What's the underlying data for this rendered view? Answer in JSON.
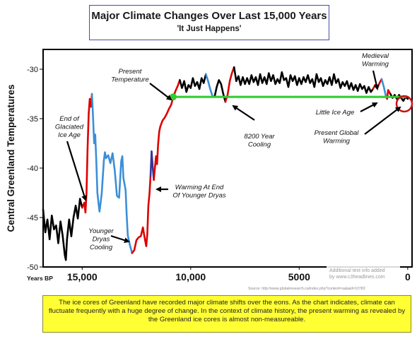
{
  "header": {
    "title": "Major Climate Changes Over Last 15,000 Years",
    "subtitle": "'It Just Happens'"
  },
  "chart_data": {
    "type": "line",
    "ylabel": "Central Greenland Temperatures",
    "xlabel": "Years BP",
    "ylim": [
      -50,
      -28
    ],
    "xlim": [
      16800,
      -200
    ],
    "x_ticks": [
      15000,
      10000,
      5000,
      0
    ],
    "x_tick_labels": [
      "15,000",
      "10,000",
      "5000",
      "0"
    ],
    "y_ticks": [
      -30,
      -35,
      -40,
      -45,
      -50
    ],
    "y_tick_labels": [
      "-30",
      "-35",
      "-40",
      "-45",
      "-50"
    ],
    "grid": false,
    "colors": {
      "cold": "#000000",
      "warming": "#dd0000",
      "cooling": "#3b8fd8",
      "present": "#33cc33",
      "deep": "#333399"
    },
    "present_temperature": -32.8,
    "series": [
      {
        "color_key": "cold",
        "points": [
          [
            16800,
            -44.2
          ],
          [
            16700,
            -46.5
          ],
          [
            16600,
            -45.2
          ],
          [
            16500,
            -47.2
          ],
          [
            16400,
            -44.8
          ],
          [
            16300,
            -46.2
          ],
          [
            16200,
            -45.8
          ],
          [
            16100,
            -47.6
          ],
          [
            16000,
            -45.4
          ],
          [
            15900,
            -46.8
          ],
          [
            15800,
            -48.8
          ],
          [
            15750,
            -49.3
          ],
          [
            15700,
            -47.2
          ],
          [
            15600,
            -45.2
          ],
          [
            15500,
            -46.9
          ],
          [
            15400,
            -45.0
          ],
          [
            15300,
            -43.8
          ],
          [
            15200,
            -45.1
          ],
          [
            15100,
            -43.1
          ],
          [
            15000,
            -44.0
          ]
        ]
      },
      {
        "color_key": "warming",
        "points": [
          [
            15000,
            -44.0
          ],
          [
            14900,
            -43.5
          ],
          [
            14850,
            -44.5
          ],
          [
            14800,
            -42.5
          ],
          [
            14750,
            -38.0
          ],
          [
            14700,
            -34.5
          ],
          [
            14650,
            -33.0
          ],
          [
            14600,
            -33.8
          ],
          [
            14550,
            -32.5
          ]
        ]
      },
      {
        "color_key": "cooling",
        "points": [
          [
            14550,
            -32.5
          ],
          [
            14500,
            -34.8
          ],
          [
            14450,
            -37.5
          ],
          [
            14400,
            -36.6
          ],
          [
            14350,
            -39.2
          ],
          [
            14300,
            -42.5
          ],
          [
            14250,
            -43.5
          ],
          [
            14200,
            -44.4
          ],
          [
            14100,
            -42.6
          ],
          [
            14000,
            -39.2
          ],
          [
            13950,
            -38.4
          ],
          [
            13900,
            -39.0
          ],
          [
            13800,
            -38.7
          ],
          [
            13700,
            -39.5
          ],
          [
            13600,
            -38.5
          ],
          [
            13500,
            -40.2
          ],
          [
            13450,
            -41.5
          ],
          [
            13400,
            -42.8
          ],
          [
            13300,
            -43.0
          ],
          [
            13200,
            -39.3
          ],
          [
            13150,
            -38.8
          ],
          [
            13100,
            -41.0
          ],
          [
            13000,
            -42.2
          ],
          [
            12950,
            -44.7
          ],
          [
            12900,
            -46.8
          ],
          [
            12800,
            -47.8
          ],
          [
            12700,
            -48.6
          ]
        ]
      },
      {
        "color_key": "warming",
        "points": [
          [
            12700,
            -48.6
          ],
          [
            12600,
            -48.3
          ],
          [
            12500,
            -47.3
          ],
          [
            12400,
            -47.0
          ],
          [
            12300,
            -46.9
          ],
          [
            12200,
            -46.0
          ],
          [
            12150,
            -46.7
          ],
          [
            12100,
            -47.3
          ],
          [
            12050,
            -47.9
          ],
          [
            12000,
            -46.7
          ],
          [
            11950,
            -43.8
          ],
          [
            11900,
            -42.6
          ],
          [
            11850,
            -40.8
          ]
        ]
      },
      {
        "color_key": "deep",
        "points": [
          [
            11850,
            -40.8
          ],
          [
            11800,
            -38.3
          ],
          [
            11750,
            -39.9
          ],
          [
            11700,
            -41.2
          ]
        ]
      },
      {
        "color_key": "warming",
        "points": [
          [
            11700,
            -41.2
          ],
          [
            11600,
            -38.8
          ],
          [
            11550,
            -39.6
          ],
          [
            11500,
            -37.6
          ],
          [
            11450,
            -36.3
          ],
          [
            11400,
            -35.8
          ],
          [
            11300,
            -35.2
          ],
          [
            11200,
            -34.9
          ],
          [
            11100,
            -34.5
          ],
          [
            11000,
            -34.0
          ],
          [
            10900,
            -33.6
          ],
          [
            10800,
            -32.8
          ],
          [
            10700,
            -32.2
          ],
          [
            10600,
            -31.7
          ],
          [
            10500,
            -31.1
          ]
        ]
      },
      {
        "color_key": "cold",
        "points": [
          [
            10500,
            -31.1
          ],
          [
            10400,
            -31.9
          ],
          [
            10300,
            -31.2
          ],
          [
            10200,
            -32.3
          ],
          [
            10100,
            -31.6
          ],
          [
            10000,
            -31.9
          ],
          [
            9900,
            -30.9
          ],
          [
            9800,
            -31.7
          ],
          [
            9700,
            -31.3
          ],
          [
            9600,
            -32.0
          ],
          [
            9500,
            -30.9
          ],
          [
            9400,
            -31.4
          ],
          [
            9300,
            -30.5
          ]
        ]
      },
      {
        "color_key": "cooling",
        "points": [
          [
            9300,
            -30.5
          ],
          [
            9200,
            -31.2
          ],
          [
            9100,
            -32.0
          ],
          [
            9000,
            -32.7
          ],
          [
            8900,
            -32.8
          ]
        ]
      },
      {
        "color_key": "cold",
        "points": [
          [
            8900,
            -32.8
          ],
          [
            8800,
            -31.8
          ],
          [
            8700,
            -31.1
          ],
          [
            8600,
            -31.5
          ],
          [
            8500,
            -32.5
          ],
          [
            8400,
            -33.3
          ]
        ]
      },
      {
        "color_key": "warming",
        "points": [
          [
            8400,
            -33.3
          ],
          [
            8300,
            -32.6
          ],
          [
            8200,
            -31.2
          ],
          [
            8100,
            -30.4
          ],
          [
            8000,
            -29.8
          ]
        ]
      },
      {
        "color_key": "cold",
        "points": [
          [
            8000,
            -29.8
          ],
          [
            7900,
            -31.2
          ],
          [
            7800,
            -30.7
          ],
          [
            7700,
            -31.6
          ],
          [
            7600,
            -30.8
          ],
          [
            7500,
            -31.5
          ],
          [
            7400,
            -30.9
          ],
          [
            7300,
            -31.5
          ],
          [
            7200,
            -30.6
          ],
          [
            7100,
            -31.3
          ],
          [
            7000,
            -30.8
          ],
          [
            6900,
            -31.6
          ],
          [
            6800,
            -30.5
          ],
          [
            6700,
            -31.4
          ],
          [
            6600,
            -30.8
          ],
          [
            6500,
            -31.5
          ],
          [
            6400,
            -30.4
          ],
          [
            6300,
            -31.2
          ],
          [
            6200,
            -30.6
          ],
          [
            6100,
            -31.5
          ],
          [
            6000,
            -31.0
          ],
          [
            5900,
            -31.4
          ],
          [
            5800,
            -30.3
          ],
          [
            5700,
            -31.1
          ],
          [
            5600,
            -30.9
          ],
          [
            5500,
            -31.8
          ],
          [
            5400,
            -30.6
          ],
          [
            5300,
            -31.2
          ],
          [
            5200,
            -30.7
          ],
          [
            5100,
            -31.6
          ],
          [
            5000,
            -30.9
          ],
          [
            4900,
            -31.5
          ],
          [
            4800,
            -30.8
          ],
          [
            4700,
            -31.3
          ],
          [
            4600,
            -30.6
          ],
          [
            4500,
            -31.4
          ],
          [
            4400,
            -31.0
          ],
          [
            4300,
            -31.8
          ],
          [
            4200,
            -30.5
          ],
          [
            4100,
            -31.3
          ],
          [
            4000,
            -30.9
          ],
          [
            3900,
            -31.7
          ],
          [
            3800,
            -31.1
          ],
          [
            3700,
            -31.5
          ],
          [
            3600,
            -30.8
          ],
          [
            3500,
            -31.6
          ],
          [
            3400,
            -30.5
          ],
          [
            3300,
            -31.4
          ],
          [
            3200,
            -31.0
          ],
          [
            3100,
            -31.9
          ],
          [
            3000,
            -31.3
          ],
          [
            2900,
            -31.7
          ],
          [
            2800,
            -31.2
          ],
          [
            2700,
            -32.0
          ],
          [
            2600,
            -31.4
          ],
          [
            2500,
            -32.1
          ],
          [
            2400,
            -31.6
          ],
          [
            2300,
            -32.2
          ],
          [
            2200,
            -31.5
          ],
          [
            2100,
            -32.0
          ],
          [
            2000,
            -31.7
          ],
          [
            1900,
            -32.4
          ],
          [
            1800,
            -31.8
          ],
          [
            1700,
            -32.3
          ],
          [
            1600,
            -32.0
          ]
        ]
      },
      {
        "color_key": "warming",
        "points": [
          [
            1600,
            -32.0
          ],
          [
            1500,
            -31.6
          ],
          [
            1400,
            -31.9
          ],
          [
            1300,
            -31.4
          ],
          [
            1200,
            -31.0
          ]
        ]
      },
      {
        "color_key": "cooling",
        "points": [
          [
            1200,
            -31.0
          ],
          [
            1100,
            -31.8
          ],
          [
            1000,
            -32.8
          ],
          [
            950,
            -33.0
          ]
        ]
      },
      {
        "color_key": "warming",
        "points": [
          [
            950,
            -33.0
          ],
          [
            900,
            -32.1
          ],
          [
            800,
            -32.5
          ]
        ]
      },
      {
        "color_key": "cold",
        "points": [
          [
            800,
            -32.5
          ],
          [
            700,
            -32.9
          ],
          [
            600,
            -32.6
          ],
          [
            500,
            -33.0
          ],
          [
            400,
            -32.6
          ],
          [
            300,
            -32.9
          ],
          [
            200,
            -33.2
          ],
          [
            100,
            -32.8
          ],
          [
            0,
            -33.0
          ]
        ]
      }
    ],
    "annotations": [
      {
        "id": "end-glaciated",
        "lines": [
          "End of",
          "Glaciated",
          "Ice Age"
        ]
      },
      {
        "id": "present-temp",
        "lines": [
          "Present",
          "Temperature"
        ]
      },
      {
        "id": "warming-end-dryas",
        "lines": [
          "Warming At End",
          "Of Younger Dryas"
        ]
      },
      {
        "id": "younger-dryas",
        "lines": [
          "Younger",
          "Dryas",
          "Cooling"
        ]
      },
      {
        "id": "cooling-8200",
        "lines": [
          "8200 Year",
          "Cooling"
        ]
      },
      {
        "id": "medieval",
        "lines": [
          "Medieval",
          "Warming"
        ]
      },
      {
        "id": "little-ice-age",
        "lines": [
          "Little Ice Age"
        ]
      },
      {
        "id": "present-global",
        "lines": [
          "Present Global",
          "Warming"
        ]
      }
    ],
    "watermark": [
      "Additional text info added",
      "by www.c3headlines.com"
    ],
    "source": "Source: http://www.globalresearch.ca/index.php?context=va&aid=10783"
  },
  "caption": "The ice cores of Greenland have recorded major climate shifts over the eons. As the chart indicates, climate can fluctuate frequently with a huge degree of change. In the context of climate history, the present warming as revealed by the Greenland ice cores is almost non-measureable."
}
